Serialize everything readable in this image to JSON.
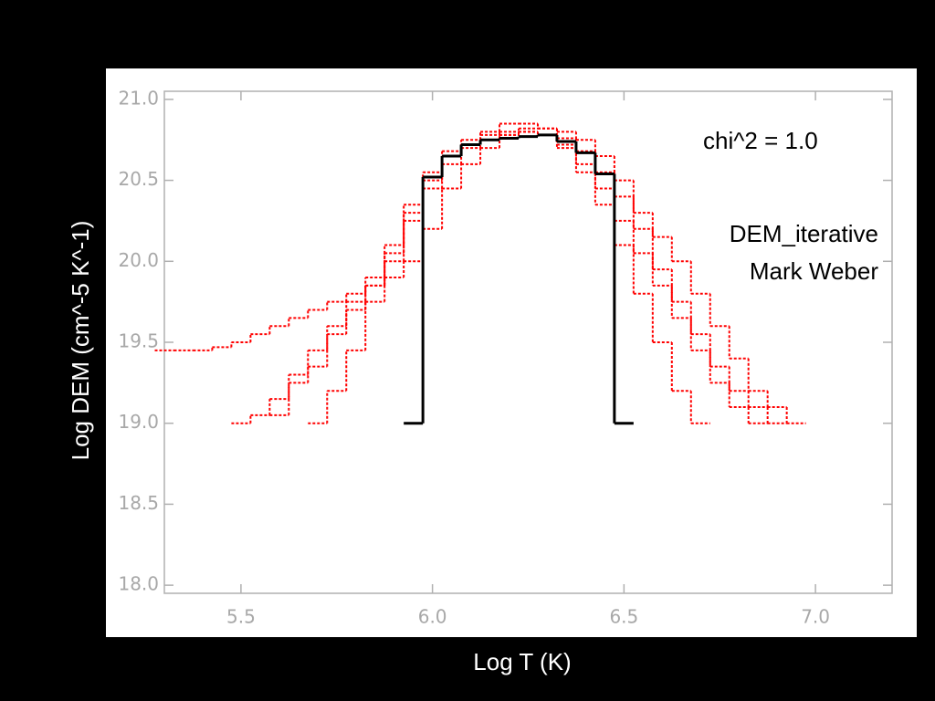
{
  "chart_data": {
    "type": "step",
    "xlabel": "Log T (K)",
    "ylabel": "Log DEM (cm^-5 K^-1)",
    "annotations": [
      "chi^2 = 1.0",
      "DEM_iterative",
      "Mark Weber"
    ],
    "xlim": [
      5.3,
      7.2
    ],
    "ylim": [
      17.95,
      21.05
    ],
    "xticks": [
      5.5,
      {
        "value": 6.0,
        "label": "6.0"
      },
      6.5,
      {
        "value": 7.0,
        "label": "7.0"
      }
    ],
    "yticks": [
      {
        "value": 18.0,
        "label": "18.0"
      },
      18.5,
      {
        "value": 19.0,
        "label": "19.0"
      },
      19.5,
      {
        "value": 20.0,
        "label": "20.0"
      },
      20.5,
      {
        "value": 21.0,
        "label": "21.0"
      }
    ],
    "bin_width": 0.05,
    "x": [
      5.3,
      5.35,
      5.4,
      5.45,
      5.5,
      5.55,
      5.6,
      5.65,
      5.7,
      5.75,
      5.8,
      5.85,
      5.9,
      5.95,
      6.0,
      6.05,
      6.1,
      6.15,
      6.2,
      6.25,
      6.3,
      6.35,
      6.4,
      6.45,
      6.5,
      6.55,
      6.6,
      6.65,
      6.7,
      6.75,
      6.8,
      6.85,
      6.9,
      6.95
    ],
    "series": [
      {
        "color": "#ff0000",
        "style": "dotted",
        "values": [
          19.45,
          19.45,
          19.45,
          19.47,
          19.5,
          19.55,
          19.6,
          19.65,
          19.7,
          19.75,
          19.8,
          19.85,
          19.9,
          20.0,
          20.2,
          20.45,
          20.6,
          20.7,
          20.78,
          20.82,
          20.82,
          20.8,
          20.75,
          20.65,
          20.5,
          20.3,
          20.15,
          20.0,
          19.8,
          19.6,
          19.4,
          19.2,
          19.1,
          19.0
        ]
      },
      {
        "color": "#ff0000",
        "style": "dotted",
        "values": [
          null,
          null,
          null,
          null,
          19.0,
          19.05,
          19.15,
          19.3,
          19.45,
          19.6,
          19.75,
          19.9,
          20.05,
          20.3,
          20.5,
          20.65,
          20.72,
          20.78,
          20.8,
          20.8,
          20.78,
          20.72,
          20.6,
          20.45,
          20.25,
          20.05,
          19.85,
          19.65,
          19.45,
          19.25,
          19.1,
          19.0,
          null,
          null
        ]
      },
      {
        "color": "#ff0000",
        "style": "dotted",
        "values": [
          null,
          null,
          null,
          null,
          null,
          null,
          null,
          null,
          19.0,
          19.2,
          19.45,
          19.75,
          20.0,
          20.25,
          20.45,
          20.6,
          20.7,
          20.75,
          20.78,
          20.8,
          20.78,
          20.7,
          20.55,
          20.35,
          20.1,
          19.8,
          19.5,
          19.2,
          19.0,
          null,
          null,
          null,
          null,
          null
        ]
      },
      {
        "color": "#ff0000",
        "style": "dotted",
        "values": [
          null,
          null,
          null,
          null,
          null,
          null,
          19.05,
          19.25,
          19.35,
          19.55,
          19.7,
          19.85,
          20.1,
          20.35,
          20.55,
          20.68,
          20.75,
          20.8,
          20.85,
          20.85,
          20.82,
          20.76,
          20.68,
          20.55,
          20.4,
          20.2,
          19.95,
          19.75,
          19.55,
          19.35,
          19.2,
          19.1,
          19.0,
          null
        ]
      },
      {
        "color": "#000000",
        "style": "solid",
        "values": [
          null,
          null,
          null,
          null,
          null,
          null,
          null,
          null,
          null,
          null,
          null,
          null,
          null,
          19.0,
          20.52,
          20.65,
          20.72,
          20.75,
          20.76,
          20.77,
          20.78,
          20.74,
          20.67,
          20.54,
          19.0,
          null,
          null,
          null,
          null,
          null,
          null,
          null,
          null,
          null
        ]
      }
    ]
  }
}
